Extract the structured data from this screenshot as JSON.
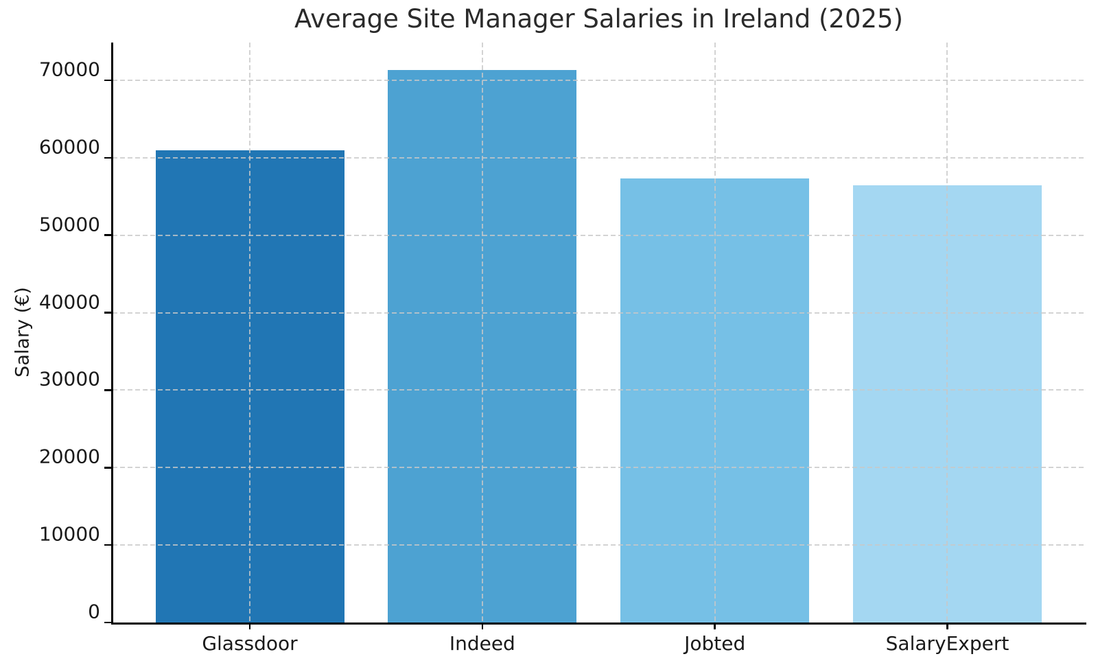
{
  "chart_data": {
    "type": "bar",
    "title": "Average Site Manager Salaries in Ireland (2025)",
    "xlabel": "",
    "ylabel": "Salary (€)",
    "categories": [
      "Glassdoor",
      "Indeed",
      "Jobted",
      "SalaryExpert"
    ],
    "values": [
      61000,
      71300,
      57300,
      56400
    ],
    "bar_colors": [
      "#2176b4",
      "#4da2d2",
      "#76c0e6",
      "#a4d7f2"
    ],
    "yticks": [
      0,
      10000,
      20000,
      30000,
      40000,
      50000,
      60000,
      70000
    ],
    "ytick_labels": [
      "0",
      "10000",
      "20000",
      "30000",
      "40000",
      "50000",
      "60000",
      "70000"
    ],
    "ylim": [
      0,
      74865
    ],
    "grid": true,
    "grid_style": "dashed",
    "grid_color": "#c8c8c8",
    "axis_color": "#000000",
    "background_color": "#ffffff",
    "legend": "none"
  }
}
